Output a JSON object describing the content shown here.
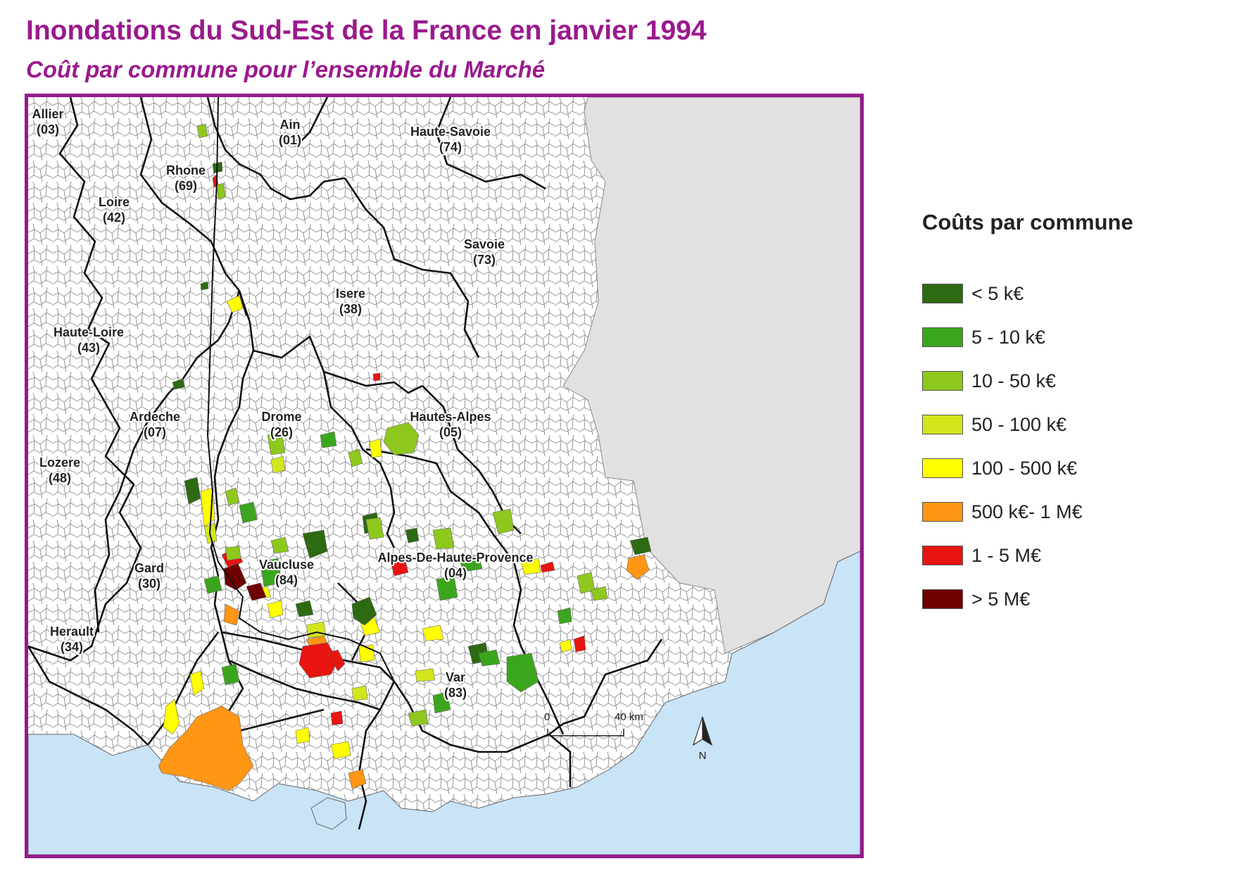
{
  "title": "Inondations du Sud-Est de la France en janvier 1994",
  "subtitle": "Coût par commune pour l’ensemble du Marché",
  "colors": {
    "title": "#9a1a8c",
    "frame": "#941a8c",
    "sea": "#c9e3f7",
    "foreign": "#e1e1e1",
    "commune_border": "#8a8a8a",
    "dept_border": "#111111"
  },
  "departments": [
    {
      "name": "Allier",
      "code": "(03)"
    },
    {
      "name": "Ain",
      "code": "(01)"
    },
    {
      "name": "Haute-Savoie",
      "code": "(74)"
    },
    {
      "name": "Rhone",
      "code": "(69)"
    },
    {
      "name": "Loire",
      "code": "(42)"
    },
    {
      "name": "Savoie",
      "code": "(73)"
    },
    {
      "name": "Isere",
      "code": "(38)"
    },
    {
      "name": "Haute-Loire",
      "code": "(43)"
    },
    {
      "name": "Ardeche",
      "code": "(07)"
    },
    {
      "name": "Drome",
      "code": "(26)"
    },
    {
      "name": "Hautes-Alpes",
      "code": "(05)"
    },
    {
      "name": "Lozere",
      "code": "(48)"
    },
    {
      "name": "Vaucluse",
      "code": "(84)"
    },
    {
      "name": "Alpes-De-Haute-Provence",
      "code": "(04)"
    },
    {
      "name": "Gard",
      "code": "(30)"
    },
    {
      "name": "Herault",
      "code": "(34)"
    },
    {
      "name": "Var",
      "code": "(83)"
    }
  ],
  "scale_bar": {
    "start": "0",
    "end": "40 km"
  },
  "north_arrow": {
    "label": "N",
    "icon": "north-arrow-icon"
  },
  "legend": {
    "title": "Coûts par commune",
    "classes": [
      {
        "label": "< 5 k€",
        "color": "#2d6a12"
      },
      {
        "label": "5 - 10 k€",
        "color": "#3ca51e"
      },
      {
        "label": "10 - 50 k€",
        "color": "#8ec81e"
      },
      {
        "label": "50 - 100 k€",
        "color": "#d2e61c"
      },
      {
        "label": "100 - 500 k€",
        "color": "#ffff00"
      },
      {
        "label": "500 k€- 1 M€",
        "color": "#ff9614"
      },
      {
        "label": "1 - 5 M€",
        "color": "#e8140f"
      },
      {
        "label": "> 5 M€",
        "color": "#6e0000"
      }
    ]
  }
}
